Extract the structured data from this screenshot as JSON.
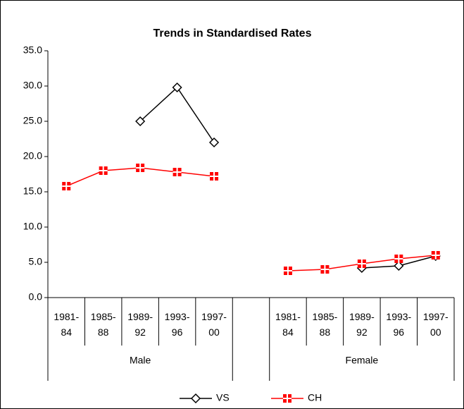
{
  "chart_data": {
    "type": "line",
    "title": "Trends in Standardised Rates",
    "categories": [
      "1981-\n84",
      "1985-\n88",
      "1989-\n92",
      "1993-\n96",
      "1997-\n00",
      null,
      "1981-\n84",
      "1985-\n88",
      "1989-\n92",
      "1993-\n96",
      "1997-\n00"
    ],
    "group_labels": [
      "Male",
      "Female"
    ],
    "series": [
      {
        "name": "VS",
        "color": "#000000",
        "marker": "diamond",
        "values": [
          null,
          null,
          25.0,
          29.8,
          22.0,
          null,
          null,
          null,
          4.2,
          4.5,
          5.9
        ]
      },
      {
        "name": "CH",
        "color": "#ff0000",
        "marker": "square-cross",
        "values": [
          15.8,
          18.0,
          18.4,
          17.8,
          17.2,
          null,
          3.8,
          4.0,
          4.8,
          5.5,
          6.0
        ]
      }
    ],
    "ylim": [
      0,
      35
    ],
    "yticks": [
      {
        "value": 0,
        "label": "0.0"
      },
      {
        "value": 5,
        "label": "5.0"
      },
      {
        "value": 10,
        "label": "10.0"
      },
      {
        "value": 15,
        "label": "15.0"
      },
      {
        "value": 20,
        "label": "20.0"
      },
      {
        "value": 25,
        "label": "25.0"
      },
      {
        "value": 30,
        "label": "30.0"
      },
      {
        "value": 35,
        "label": "35.0"
      }
    ],
    "grid": false,
    "legend": "bottom"
  }
}
